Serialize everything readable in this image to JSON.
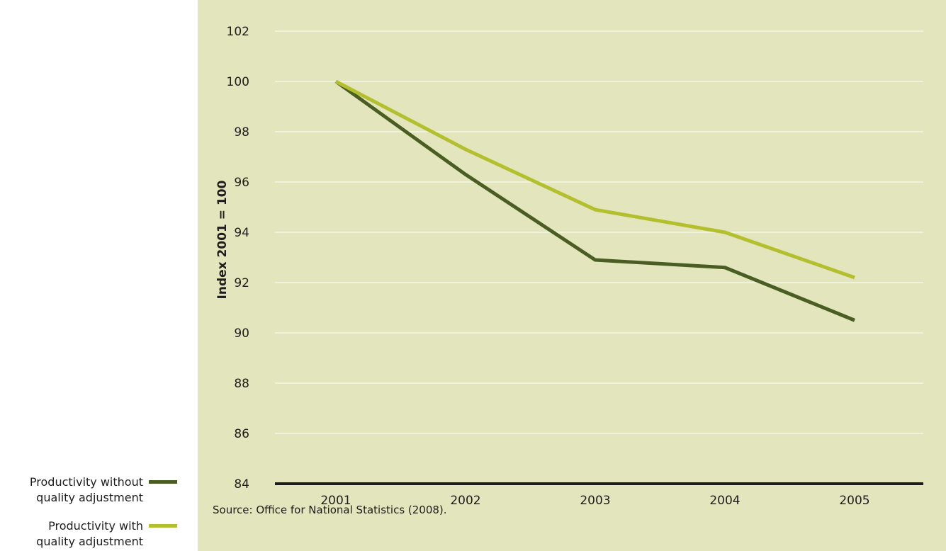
{
  "chart_data": {
    "type": "line",
    "x": [
      "2001",
      "2002",
      "2003",
      "2004",
      "2005"
    ],
    "series": [
      {
        "name": "Productivity without quality adjustment",
        "values": [
          100,
          96.3,
          92.9,
          92.6,
          90.5
        ],
        "color": "#4a5e23"
      },
      {
        "name": "Productivity with quality adjustment",
        "values": [
          100,
          97.3,
          94.9,
          94.0,
          92.2
        ],
        "color": "#b3bf2c"
      }
    ],
    "ylabel": "Index 2001 = 100",
    "ylim": [
      84,
      102
    ],
    "yticks": [
      84,
      86,
      88,
      90,
      92,
      94,
      96,
      98,
      100,
      102
    ],
    "grid": true,
    "legend_position": "bottom-left"
  },
  "source": "Source: Office for National Statistics (2008).",
  "legend": [
    {
      "line1": "Productivity without",
      "line2": "quality adjustment",
      "color": "#4a5e23"
    },
    {
      "line1": "Productivity with",
      "line2": "quality adjustment",
      "color": "#b3bf2c"
    }
  ]
}
